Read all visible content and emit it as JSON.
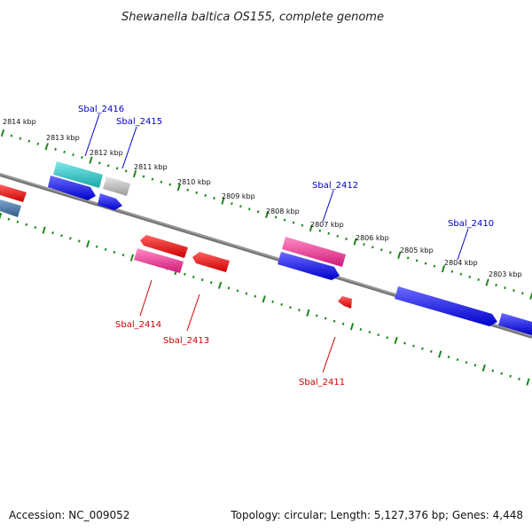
{
  "title": "Shewanella baltica OS155, complete genome",
  "footer": {
    "accession": "Accession: NC_009052",
    "summary": "Topology: circular; Length: 5,127,376 bp; Genes: 4,448"
  },
  "colors": {
    "backbone": "#808080",
    "ticks": "#1a8a1a",
    "forward_cds": "#0000ee",
    "reverse_cds": "#ee0000",
    "forward_label": "#0000cc",
    "reverse_label": "#cc0000",
    "cyan": "#27c9c9",
    "gray": "#bcbcbc",
    "pink": "#ee2f92",
    "steel": "#4477aa"
  },
  "kbp_labels": [
    "2814 kbp",
    "2813 kbp",
    "2812 kbp",
    "2811 kbp",
    "2810 kbp",
    "2809 kbp",
    "2808 kbp",
    "2807 kbp",
    "2806 kbp",
    "2805 kbp",
    "2804 kbp",
    "2803 kbp"
  ],
  "gene_labels": {
    "Sbal_2416": "Sbal_2416",
    "Sbal_2415": "Sbal_2415",
    "Sbal_2414": "Sbal_2414",
    "Sbal_2413": "Sbal_2413",
    "Sbal_2412": "Sbal_2412",
    "Sbal_2411": "Sbal_2411",
    "Sbal_2410": "Sbal_2410"
  }
}
